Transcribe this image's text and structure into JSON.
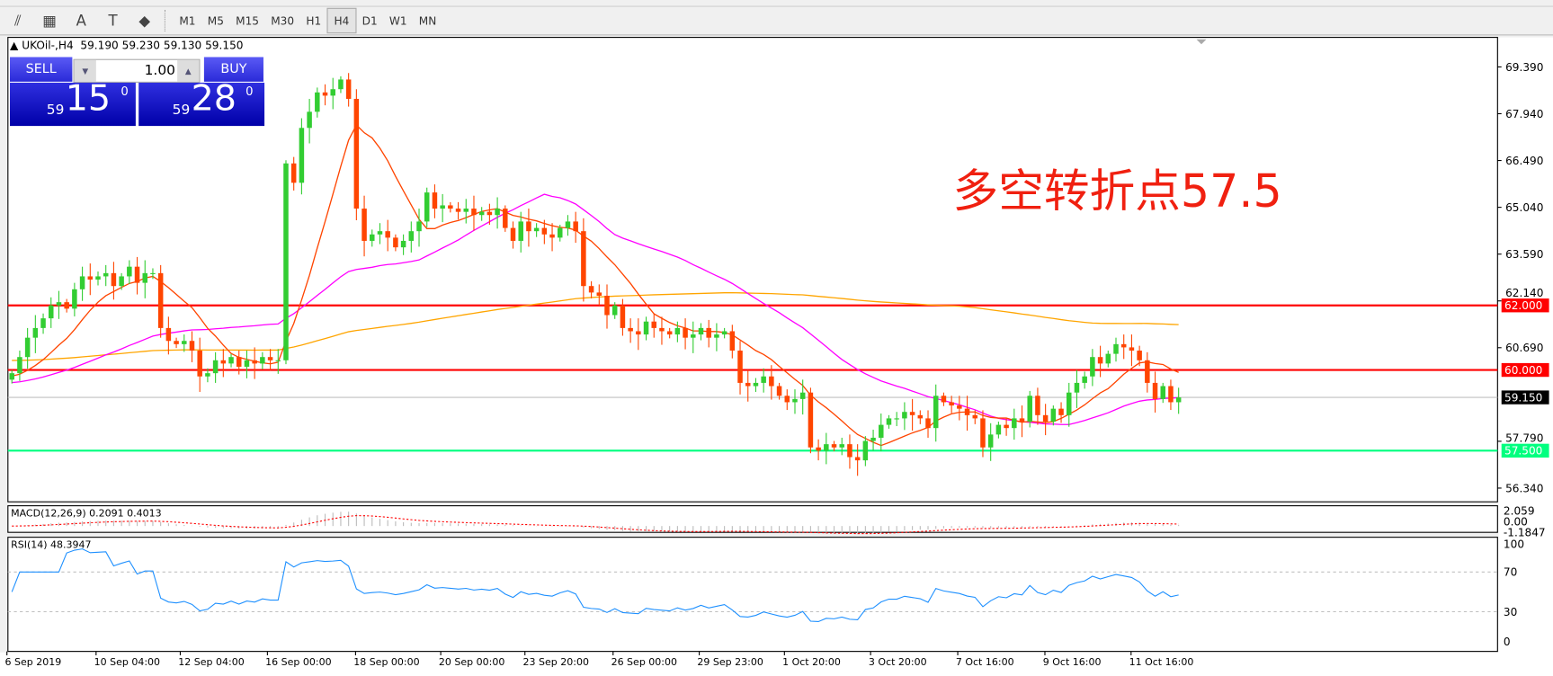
{
  "toolbar": {
    "icons": [
      "fibonacci-expansion-icon",
      "fibonacci-fan-icon",
      "text-icon",
      "text-label-icon",
      "arrows-dropdown-icon"
    ],
    "icon_glyphs": [
      "⫽",
      "▦",
      "A",
      "T",
      "◆"
    ],
    "periods": [
      "M1",
      "M5",
      "M15",
      "M30",
      "H1",
      "H4",
      "D1",
      "W1",
      "MN"
    ],
    "active_period": "H4"
  },
  "chart_header": {
    "symbol": "UKOil-,H4",
    "ohlc": "59.190 59.230 59.130 59.150"
  },
  "trade_panel": {
    "sell_label": "SELL",
    "buy_label": "BUY",
    "lot": "1.00",
    "sell_price": {
      "prefix": "59",
      "big": "15",
      "sup": "0"
    },
    "buy_price": {
      "prefix": "59",
      "big": "28",
      "sup": "0"
    }
  },
  "annotation": "多空转折点57.5",
  "colors": {
    "bull": "#32cd32",
    "bear": "#ff4500",
    "ma_fast": "#ff4500",
    "ma_mid": "#ff00ff",
    "ma_slow": "#ffa500",
    "resistance": "#ff0000",
    "support": "#00ff7f"
  },
  "chart_data": {
    "type": "candlestick",
    "price_axis": {
      "ticks": [
        "69.390",
        "67.940",
        "66.490",
        "65.040",
        "63.590",
        "62.140",
        "60.690",
        "57.790",
        "56.340"
      ],
      "range": [
        55.9,
        70.3
      ]
    },
    "close": [
      59.9,
      60.4,
      61.0,
      61.3,
      61.6,
      62.0,
      62.1,
      61.9,
      62.5,
      62.9,
      62.8,
      62.9,
      63.0,
      62.6,
      62.9,
      63.2,
      62.7,
      63.0,
      63.0,
      61.3,
      60.9,
      60.8,
      60.9,
      60.6,
      59.8,
      59.9,
      60.3,
      60.2,
      60.4,
      60.1,
      60.3,
      60.2,
      60.4,
      60.3,
      60.3,
      66.4,
      65.8,
      67.5,
      68.0,
      68.6,
      68.5,
      68.7,
      69.0,
      68.4,
      65.0,
      64.0,
      64.2,
      64.3,
      64.1,
      63.8,
      64.0,
      64.3,
      64.6,
      65.5,
      65.0,
      65.1,
      65.0,
      64.9,
      65.0,
      64.8,
      64.9,
      64.8,
      65.0,
      64.4,
      64.0,
      64.6,
      64.3,
      64.4,
      64.2,
      64.1,
      64.4,
      64.6,
      64.3,
      62.6,
      62.4,
      62.3,
      61.7,
      62.0,
      61.3,
      61.2,
      61.1,
      61.5,
      61.3,
      61.2,
      61.1,
      61.3,
      61.0,
      61.1,
      61.3,
      61.0,
      61.1,
      61.2,
      60.6,
      59.6,
      59.5,
      59.6,
      59.8,
      59.5,
      59.2,
      59.0,
      59.1,
      59.3,
      57.6,
      57.5,
      57.7,
      57.6,
      57.7,
      57.3,
      57.2,
      57.8,
      57.9,
      58.3,
      58.5,
      58.5,
      58.7,
      58.6,
      58.5,
      58.2,
      59.2,
      59.0,
      58.9,
      58.8,
      58.6,
      58.5,
      57.6,
      58.0,
      58.3,
      58.2,
      58.5,
      58.4,
      59.2,
      58.6,
      58.4,
      58.8,
      58.6,
      59.3,
      59.6,
      59.8,
      60.4,
      60.2,
      60.5,
      60.8,
      60.7,
      60.6,
      60.3,
      59.6,
      59.1,
      59.5,
      59.0,
      59.15
    ],
    "hlines": [
      {
        "label": "62.000",
        "value": 62.0,
        "color": "#ff0000"
      },
      {
        "label": "60.000",
        "value": 60.0,
        "color": "#ff0000"
      },
      {
        "label": "59.150",
        "value": 59.15,
        "color": "#000000"
      },
      {
        "label": "57.500",
        "value": 57.5,
        "color": "#00ff7f"
      }
    ],
    "x_labels": [
      "6 Sep 2019",
      "10 Sep 04:00",
      "12 Sep 04:00",
      "16 Sep 00:00",
      "18 Sep 00:00",
      "20 Sep 00:00",
      "23 Sep 20:00",
      "26 Sep 00:00",
      "29 Sep 23:00",
      "1 Oct 20:00",
      "3 Oct 20:00",
      "7 Oct 16:00",
      "9 Oct 16:00",
      "11 Oct 16:00"
    ],
    "macd": {
      "label": "MACD(12,26,9) 0.2091 0.4013",
      "ticks": [
        "2.059",
        "0.00",
        "-1.1847"
      ],
      "range": [
        -1.1847,
        2.059
      ]
    },
    "rsi": {
      "label": "RSI(14) 48.3947",
      "ticks": [
        "100",
        "70",
        "30",
        "0"
      ],
      "levels": [
        70,
        30
      ]
    }
  }
}
